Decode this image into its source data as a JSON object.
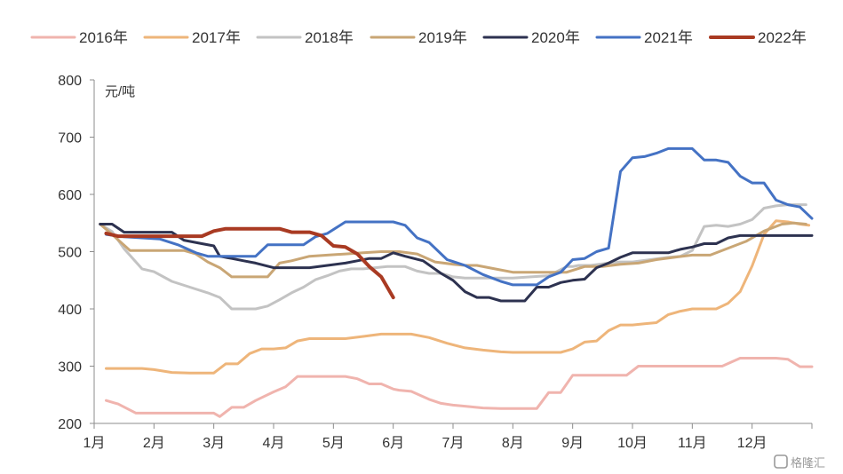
{
  "chart_data": {
    "type": "line",
    "unit_label": "元/吨",
    "ylim": [
      200,
      800
    ],
    "yticks": [
      200,
      300,
      400,
      500,
      600,
      700,
      800
    ],
    "month_labels": [
      "1月",
      "2月",
      "3月",
      "4月",
      "5月",
      "6月",
      "7月",
      "8月",
      "9月",
      "10月",
      "11月",
      "12月"
    ],
    "grid": false,
    "legend_position": "top",
    "x_note": "x values are months of the year (1 = start of January, 13 = end of December)",
    "series": [
      {
        "name": "2016年",
        "color": "#f0b4ae",
        "width": 3,
        "x": [
          1.2,
          1.4,
          1.7,
          2.0,
          2.4,
          2.8,
          3.0,
          3.1,
          3.3,
          3.5,
          3.7,
          4.0,
          4.2,
          4.4,
          4.7,
          5.0,
          5.2,
          5.4,
          5.6,
          5.8,
          6.0,
          6.1,
          6.3,
          6.6,
          6.8,
          7.0,
          7.2,
          7.5,
          7.8,
          8.0,
          8.2,
          8.4,
          8.6,
          8.8,
          9.0,
          9.2,
          9.6,
          9.9,
          10.1,
          10.3,
          10.6,
          10.9,
          11.2,
          11.5,
          11.8,
          12.0,
          12.4,
          12.6,
          12.8,
          13.0
        ],
        "y": [
          240,
          234,
          218,
          218,
          218,
          218,
          218,
          212,
          228,
          228,
          240,
          255,
          264,
          282,
          282,
          282,
          282,
          278,
          269,
          269,
          260,
          258,
          256,
          242,
          235,
          232,
          230,
          227,
          226,
          226,
          226,
          226,
          254,
          254,
          284,
          284,
          284,
          284,
          300,
          300,
          300,
          300,
          300,
          300,
          314,
          314,
          314,
          312,
          299,
          299
        ]
      },
      {
        "name": "2017年",
        "color": "#eeb57a",
        "width": 3,
        "x": [
          1.2,
          1.5,
          1.8,
          2.0,
          2.3,
          2.6,
          2.8,
          3.0,
          3.2,
          3.4,
          3.6,
          3.8,
          4.0,
          4.2,
          4.4,
          4.6,
          4.8,
          5.0,
          5.2,
          5.5,
          5.8,
          6.0,
          6.3,
          6.6,
          6.9,
          7.2,
          7.5,
          7.8,
          8.0,
          8.2,
          8.4,
          8.6,
          8.8,
          9.0,
          9.2,
          9.4,
          9.6,
          9.8,
          10.0,
          10.2,
          10.4,
          10.6,
          10.8,
          11.0,
          11.2,
          11.4,
          11.6,
          11.8,
          12.0,
          12.2,
          12.4,
          12.6,
          12.8,
          12.95
        ],
        "y": [
          296,
          296,
          296,
          294,
          289,
          288,
          288,
          288,
          304,
          304,
          322,
          330,
          330,
          332,
          344,
          348,
          348,
          348,
          348,
          352,
          356,
          356,
          356,
          350,
          340,
          332,
          328,
          325,
          324,
          324,
          324,
          324,
          324,
          330,
          342,
          344,
          362,
          372,
          372,
          374,
          376,
          390,
          396,
          400,
          400,
          400,
          410,
          430,
          475,
          530,
          554,
          552,
          548,
          546
        ]
      },
      {
        "name": "2018年",
        "color": "#c3c3c3",
        "width": 3,
        "x": [
          1.1,
          1.3,
          1.5,
          1.8,
          2.0,
          2.3,
          2.6,
          2.9,
          3.1,
          3.3,
          3.5,
          3.7,
          3.9,
          4.1,
          4.3,
          4.5,
          4.7,
          4.9,
          5.1,
          5.3,
          5.5,
          5.7,
          5.9,
          6.0,
          6.2,
          6.4,
          6.6,
          6.8,
          7.0,
          7.2,
          7.5,
          7.8,
          8.0,
          8.3,
          8.6,
          8.9,
          9.0,
          9.1,
          9.3,
          9.6,
          9.8,
          10.0,
          10.3,
          10.6,
          10.8,
          11.0,
          11.2,
          11.4,
          11.6,
          11.8,
          12.0,
          12.2,
          12.4,
          12.6,
          12.8,
          12.9
        ],
        "y": [
          548,
          535,
          505,
          470,
          465,
          448,
          438,
          428,
          420,
          400,
          400,
          400,
          405,
          416,
          428,
          438,
          451,
          458,
          466,
          470,
          470,
          472,
          474,
          474,
          474,
          466,
          462,
          462,
          456,
          454,
          454,
          454,
          454,
          456,
          458,
          474,
          474,
          476,
          476,
          480,
          482,
          482,
          486,
          490,
          492,
          502,
          544,
          546,
          544,
          548,
          556,
          576,
          580,
          582,
          582,
          582
        ]
      },
      {
        "name": "2019年",
        "color": "#c9a675",
        "width": 3,
        "x": [
          1.1,
          1.3,
          1.6,
          1.9,
          2.2,
          2.5,
          2.7,
          2.9,
          3.1,
          3.3,
          3.5,
          3.7,
          3.9,
          4.1,
          4.3,
          4.6,
          4.9,
          5.2,
          5.5,
          5.8,
          6.1,
          6.4,
          6.7,
          7.0,
          7.2,
          7.4,
          7.7,
          8.0,
          8.3,
          8.6,
          8.9,
          9.2,
          9.5,
          9.8,
          10.1,
          10.4,
          10.7,
          11.0,
          11.3,
          11.6,
          11.9,
          12.2,
          12.5,
          12.7,
          12.9
        ],
        "y": [
          548,
          530,
          502,
          502,
          502,
          502,
          496,
          482,
          472,
          456,
          456,
          456,
          456,
          480,
          484,
          492,
          494,
          496,
          498,
          500,
          500,
          496,
          482,
          478,
          476,
          476,
          470,
          464,
          464,
          464,
          464,
          474,
          474,
          478,
          480,
          486,
          490,
          494,
          494,
          506,
          518,
          536,
          548,
          550,
          548
        ]
      },
      {
        "name": "2020年",
        "color": "#2d3250",
        "width": 3,
        "x": [
          1.1,
          1.3,
          1.5,
          1.8,
          2.1,
          2.3,
          2.5,
          2.8,
          3.0,
          3.1,
          3.3,
          3.5,
          3.7,
          4.0,
          4.3,
          4.6,
          4.9,
          5.2,
          5.4,
          5.6,
          5.8,
          6.0,
          6.2,
          6.5,
          6.8,
          7.0,
          7.2,
          7.4,
          7.6,
          7.8,
          8.0,
          8.2,
          8.4,
          8.6,
          8.8,
          9.0,
          9.2,
          9.4,
          9.6,
          9.8,
          10.0,
          10.2,
          10.4,
          10.6,
          10.8,
          11.0,
          11.2,
          11.4,
          11.6,
          11.8,
          12.0,
          12.4,
          12.8,
          13.0
        ],
        "y": [
          548,
          548,
          534,
          534,
          534,
          534,
          520,
          514,
          510,
          492,
          488,
          484,
          480,
          472,
          472,
          472,
          476,
          480,
          484,
          488,
          488,
          498,
          492,
          484,
          462,
          450,
          430,
          420,
          420,
          414,
          414,
          414,
          438,
          438,
          446,
          450,
          452,
          472,
          480,
          490,
          498,
          498,
          498,
          498,
          504,
          508,
          514,
          514,
          524,
          528,
          528,
          528,
          528,
          528
        ]
      },
      {
        "name": "2021年",
        "color": "#4472c4",
        "width": 3,
        "x": [
          1.2,
          1.5,
          1.8,
          2.1,
          2.4,
          2.7,
          2.9,
          3.1,
          3.4,
          3.7,
          3.9,
          4.2,
          4.5,
          4.7,
          4.9,
          5.2,
          5.5,
          5.8,
          6.0,
          6.2,
          6.4,
          6.6,
          6.9,
          7.2,
          7.5,
          7.8,
          8.0,
          8.2,
          8.4,
          8.6,
          8.8,
          9.0,
          9.2,
          9.4,
          9.6,
          9.8,
          10.0,
          10.2,
          10.4,
          10.6,
          10.8,
          11.0,
          11.2,
          11.4,
          11.6,
          11.8,
          12.0,
          12.2,
          12.4,
          12.6,
          12.8,
          13.0
        ],
        "y": [
          530,
          526,
          524,
          522,
          512,
          498,
          492,
          492,
          492,
          492,
          512,
          512,
          512,
          526,
          532,
          552,
          552,
          552,
          552,
          546,
          524,
          516,
          486,
          476,
          460,
          448,
          442,
          442,
          442,
          456,
          464,
          486,
          488,
          500,
          506,
          640,
          664,
          666,
          672,
          680,
          680,
          680,
          660,
          660,
          656,
          632,
          620,
          620,
          590,
          582,
          578,
          558
        ]
      },
      {
        "name": "2022年",
        "color": "#a93a22",
        "width": 4,
        "x": [
          1.2,
          1.4,
          1.6,
          1.9,
          2.2,
          2.5,
          2.8,
          3.0,
          3.2,
          3.5,
          3.8,
          4.1,
          4.3,
          4.6,
          4.8,
          5.0,
          5.2,
          5.4,
          5.6,
          5.8,
          6.0
        ],
        "y": [
          532,
          527,
          527,
          527,
          527,
          527,
          527,
          536,
          540,
          540,
          540,
          540,
          534,
          534,
          528,
          510,
          508,
          496,
          474,
          456,
          420
        ]
      }
    ]
  },
  "watermark": {
    "text": "格隆汇"
  }
}
